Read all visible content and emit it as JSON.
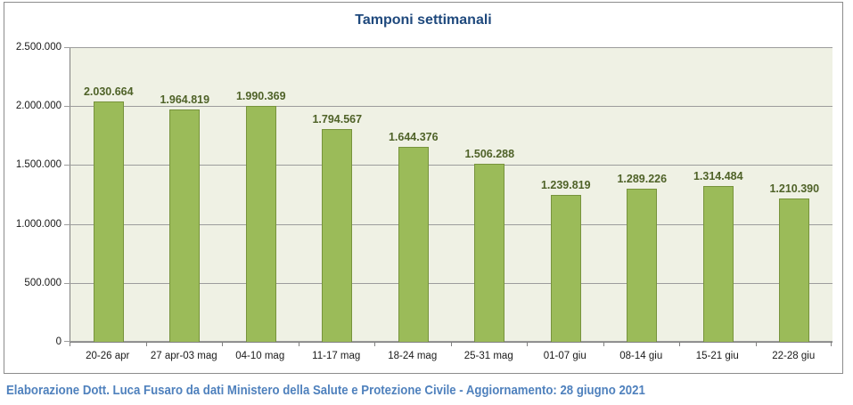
{
  "chart_data": {
    "type": "bar",
    "title": "Tamponi settimanali",
    "categories": [
      "20-26 apr",
      "27 apr-03 mag",
      "04-10 mag",
      "11-17 mag",
      "18-24 mag",
      "25-31 mag",
      "01-07 giu",
      "08-14 giu",
      "15-21 giu",
      "22-28 giu"
    ],
    "values": [
      2030664,
      1964819,
      1990369,
      1794567,
      1644376,
      1506288,
      1239819,
      1289226,
      1314484,
      1210390
    ],
    "value_labels": [
      "2.030.664",
      "1.964.819",
      "1.990.369",
      "1.794.567",
      "1.644.376",
      "1.506.288",
      "1.239.819",
      "1.289.226",
      "1.314.484",
      "1.210.390"
    ],
    "xlabel": "",
    "ylabel": "",
    "ylim": [
      0,
      2500000
    ],
    "ytick_values": [
      0,
      500000,
      1000000,
      1500000,
      2000000,
      2500000
    ],
    "ytick_labels": [
      "0",
      "500.000",
      "1.000.000",
      "1.500.000",
      "2.000.000",
      "2.500.000"
    ],
    "grid": true,
    "legend_position": "none"
  },
  "footer": {
    "text": "Elaborazione Dott. Luca Fusaro da dati Ministero della Salute e Protezione Civile - Aggiornamento: 28 giugno 2021"
  },
  "colors": {
    "title": "#1F497D",
    "bar_fill": "#9BBB59",
    "bar_border": "#77933C",
    "data_label": "#4F6228",
    "plot_background": "#EFF1E4",
    "gridline": "#9C9C9C",
    "axis": "#808080",
    "chart_border": "#8C8C8C",
    "footer_text": "#4F81BD"
  }
}
